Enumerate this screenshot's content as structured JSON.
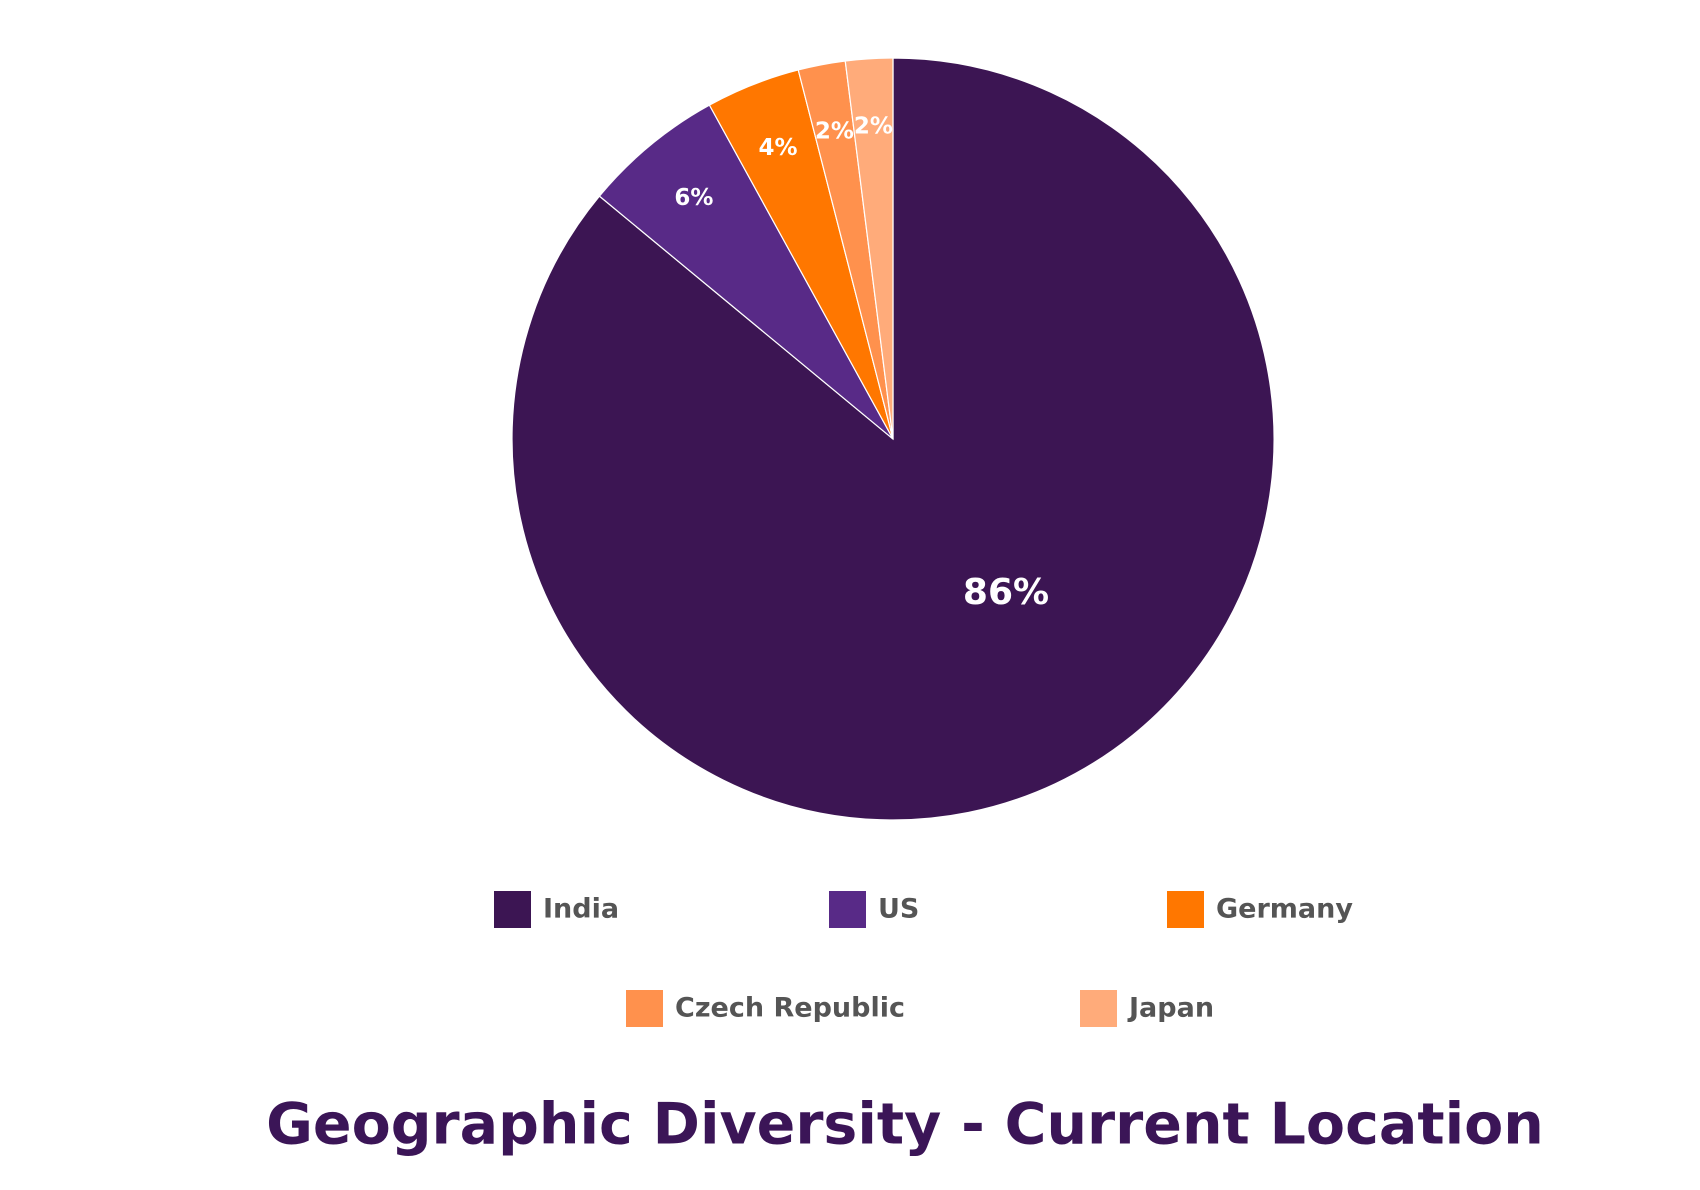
{
  "chart_data": {
    "type": "pie",
    "title": "Geographic Diversity - Current Location",
    "categories": [
      "India",
      "US",
      "Germany",
      "Czech Republic",
      "Japan"
    ],
    "values": [
      86,
      6,
      4,
      2,
      2
    ],
    "value_labels": [
      "86%",
      "6%",
      "4%",
      "2%",
      "2%"
    ],
    "colors": [
      "#3c1553",
      "#582a87",
      "#ff7700",
      "#ff914d",
      "#ffab7a"
    ],
    "legend": "bottom"
  }
}
